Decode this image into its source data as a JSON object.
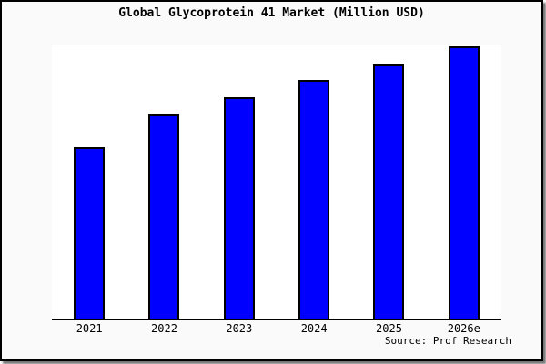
{
  "title": "Global Glycoprotein 41 Market (Million USD)",
  "source_note": "Source: Prof Research",
  "colors": {
    "bar_fill": "#0000FF",
    "bar_border": "#000000",
    "background": "#FAFAFA",
    "plot_background": "#FFFFFF",
    "axis": "#000000",
    "frame_border": "#000000"
  },
  "chart_data": {
    "type": "bar",
    "title": "Global Glycoprotein 41 Market (Million USD)",
    "categories": [
      "2021",
      "2022",
      "2023",
      "2024",
      "2025",
      "2026e"
    ],
    "values": [
      62.6,
      74.6,
      80.7,
      87.0,
      93.0,
      99.2
    ],
    "value_note": "No y-axis or data labels shown; values estimated as bar heights in % of plot height",
    "xlabel": "",
    "ylabel": "",
    "ylim": [
      0,
      100
    ],
    "grid": false,
    "legend": false,
    "y_axis_visible": false,
    "source": "Source: Prof Research"
  }
}
